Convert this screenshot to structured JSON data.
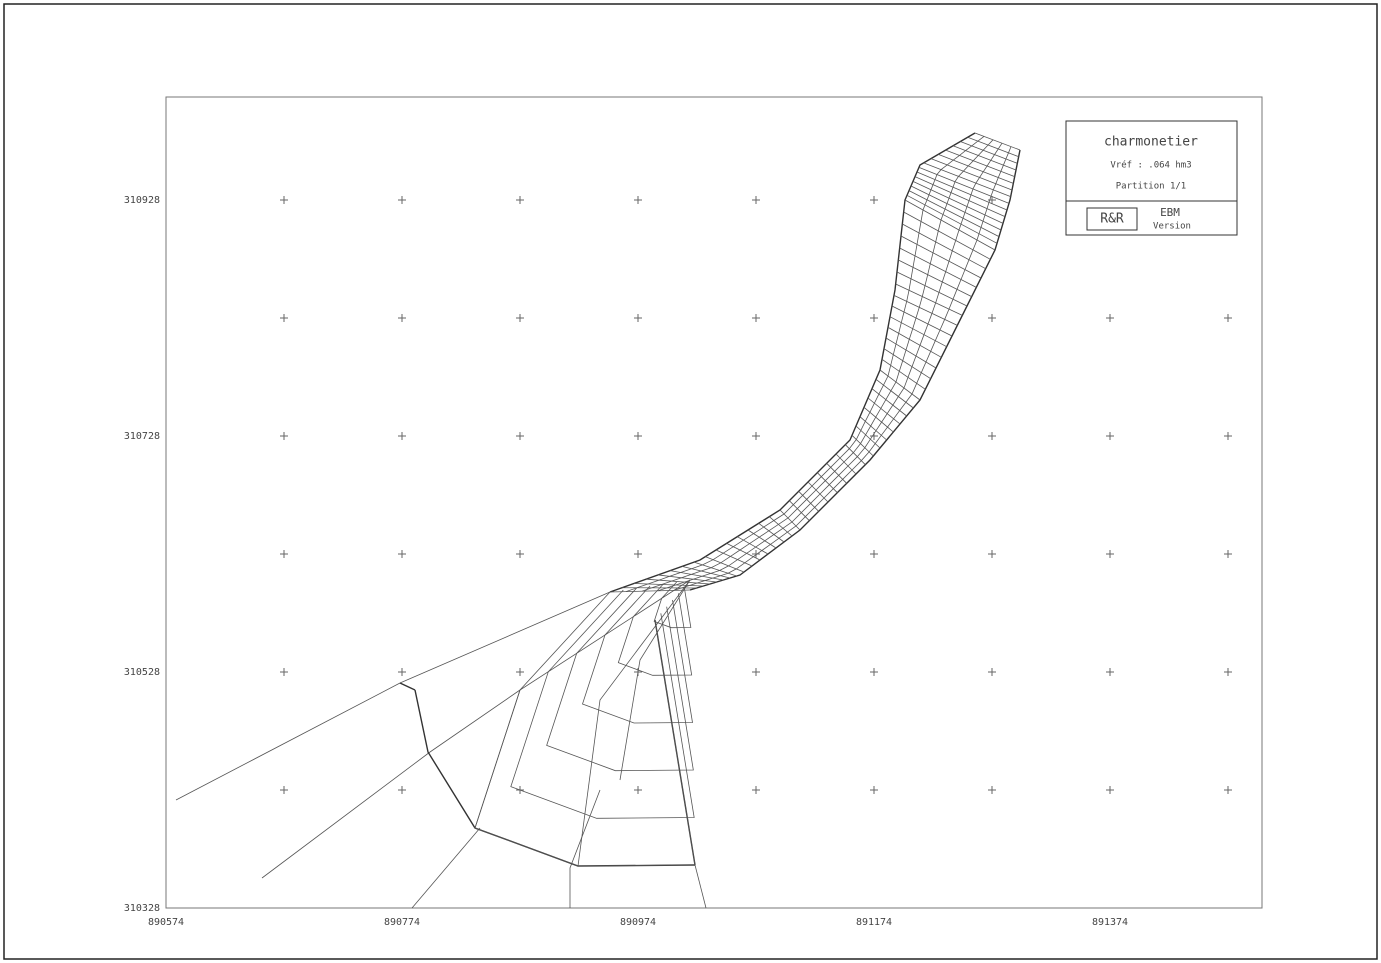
{
  "axes": {
    "y_labels": [
      "310928",
      "310728",
      "310528",
      "310328"
    ],
    "x_labels": [
      "890574",
      "890774",
      "890974",
      "891174",
      "891374"
    ]
  },
  "cartouche": {
    "title": "charmonetier",
    "volume": "Vréf : .064 hm3",
    "partition": "Partition 1/1",
    "logo": "R&R",
    "software": "EBM",
    "version": "Version"
  }
}
